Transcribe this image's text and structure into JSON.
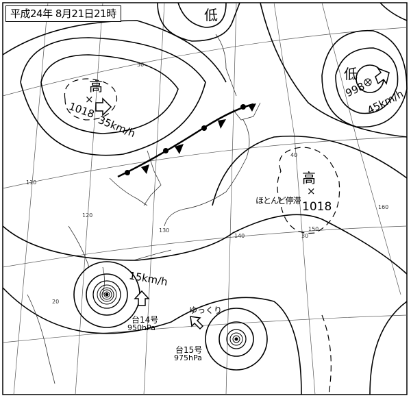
{
  "title": "平成24年 8月21日21時",
  "colors": {
    "line": "#000000",
    "grid": "#555555",
    "background": "#ffffff"
  },
  "grid_labels": {
    "lat": [
      "50",
      "40",
      "30",
      "20"
    ],
    "lon": [
      "110",
      "120",
      "130",
      "140",
      "150",
      "160"
    ]
  },
  "systems": {
    "low_north": {
      "kanji": "低"
    },
    "high_west": {
      "kanji": "高",
      "mark": "×",
      "pressure": "1018",
      "motion": "35km/h"
    },
    "low_east": {
      "kanji": "低",
      "pressure": "998",
      "motion": "45km/h"
    },
    "high_east": {
      "kanji": "高",
      "mark": "×",
      "pressure": "1018",
      "motion": "ほとんど停滞"
    },
    "typhoon14": {
      "name": "台14号",
      "pressure": "950hPa",
      "motion": "15km/h"
    },
    "typhoon15": {
      "name": "台15号",
      "pressure": "975hPa",
      "motion": "ゆっくり"
    }
  },
  "front": {
    "type": "stationary"
  }
}
